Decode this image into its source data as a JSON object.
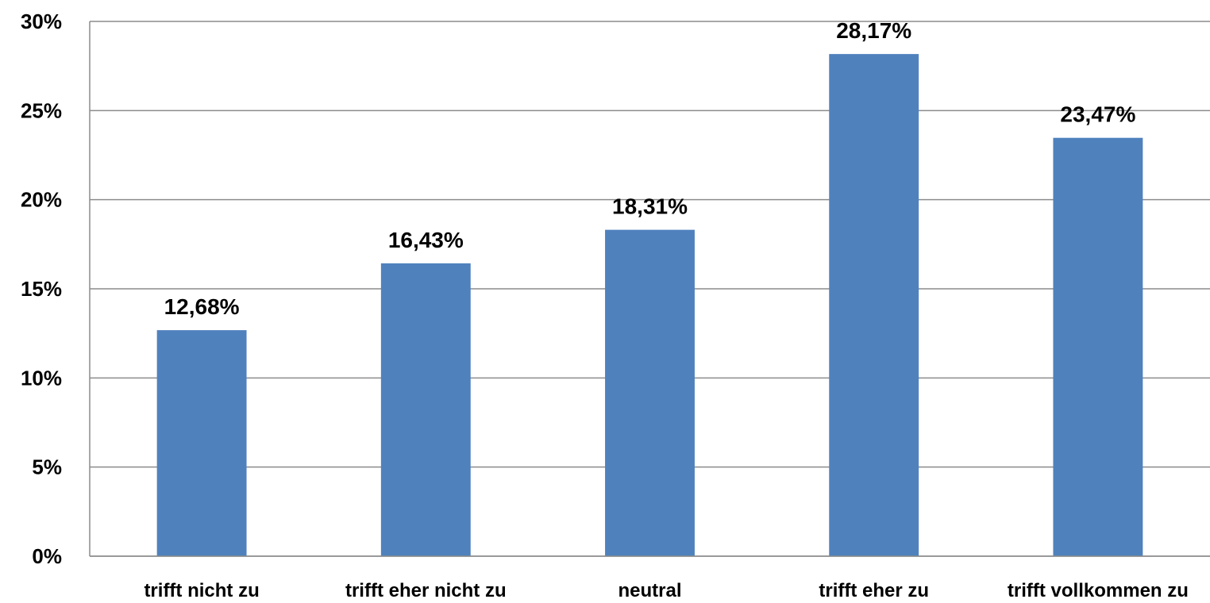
{
  "chart_data": {
    "type": "bar",
    "title": "",
    "xlabel": "",
    "ylabel": "",
    "categories": [
      "trifft nicht zu",
      "trifft eher nicht zu",
      "neutral",
      "trifft eher zu",
      "trifft vollkommen zu"
    ],
    "values": [
      12.68,
      16.43,
      18.31,
      28.17,
      23.47
    ],
    "data_labels": [
      "12,68%",
      "16,43%",
      "18,31%",
      "28,17%",
      "23,47%"
    ],
    "ylim": [
      0,
      30
    ],
    "yticks": [
      0,
      5,
      10,
      15,
      20,
      25,
      30
    ],
    "ytick_labels": [
      "0%",
      "5%",
      "10%",
      "15%",
      "20%",
      "25%",
      "30%"
    ],
    "grid": true,
    "legend": "none",
    "bar_color": "#4F81BD",
    "gridline_color": "#8C8C8C"
  }
}
